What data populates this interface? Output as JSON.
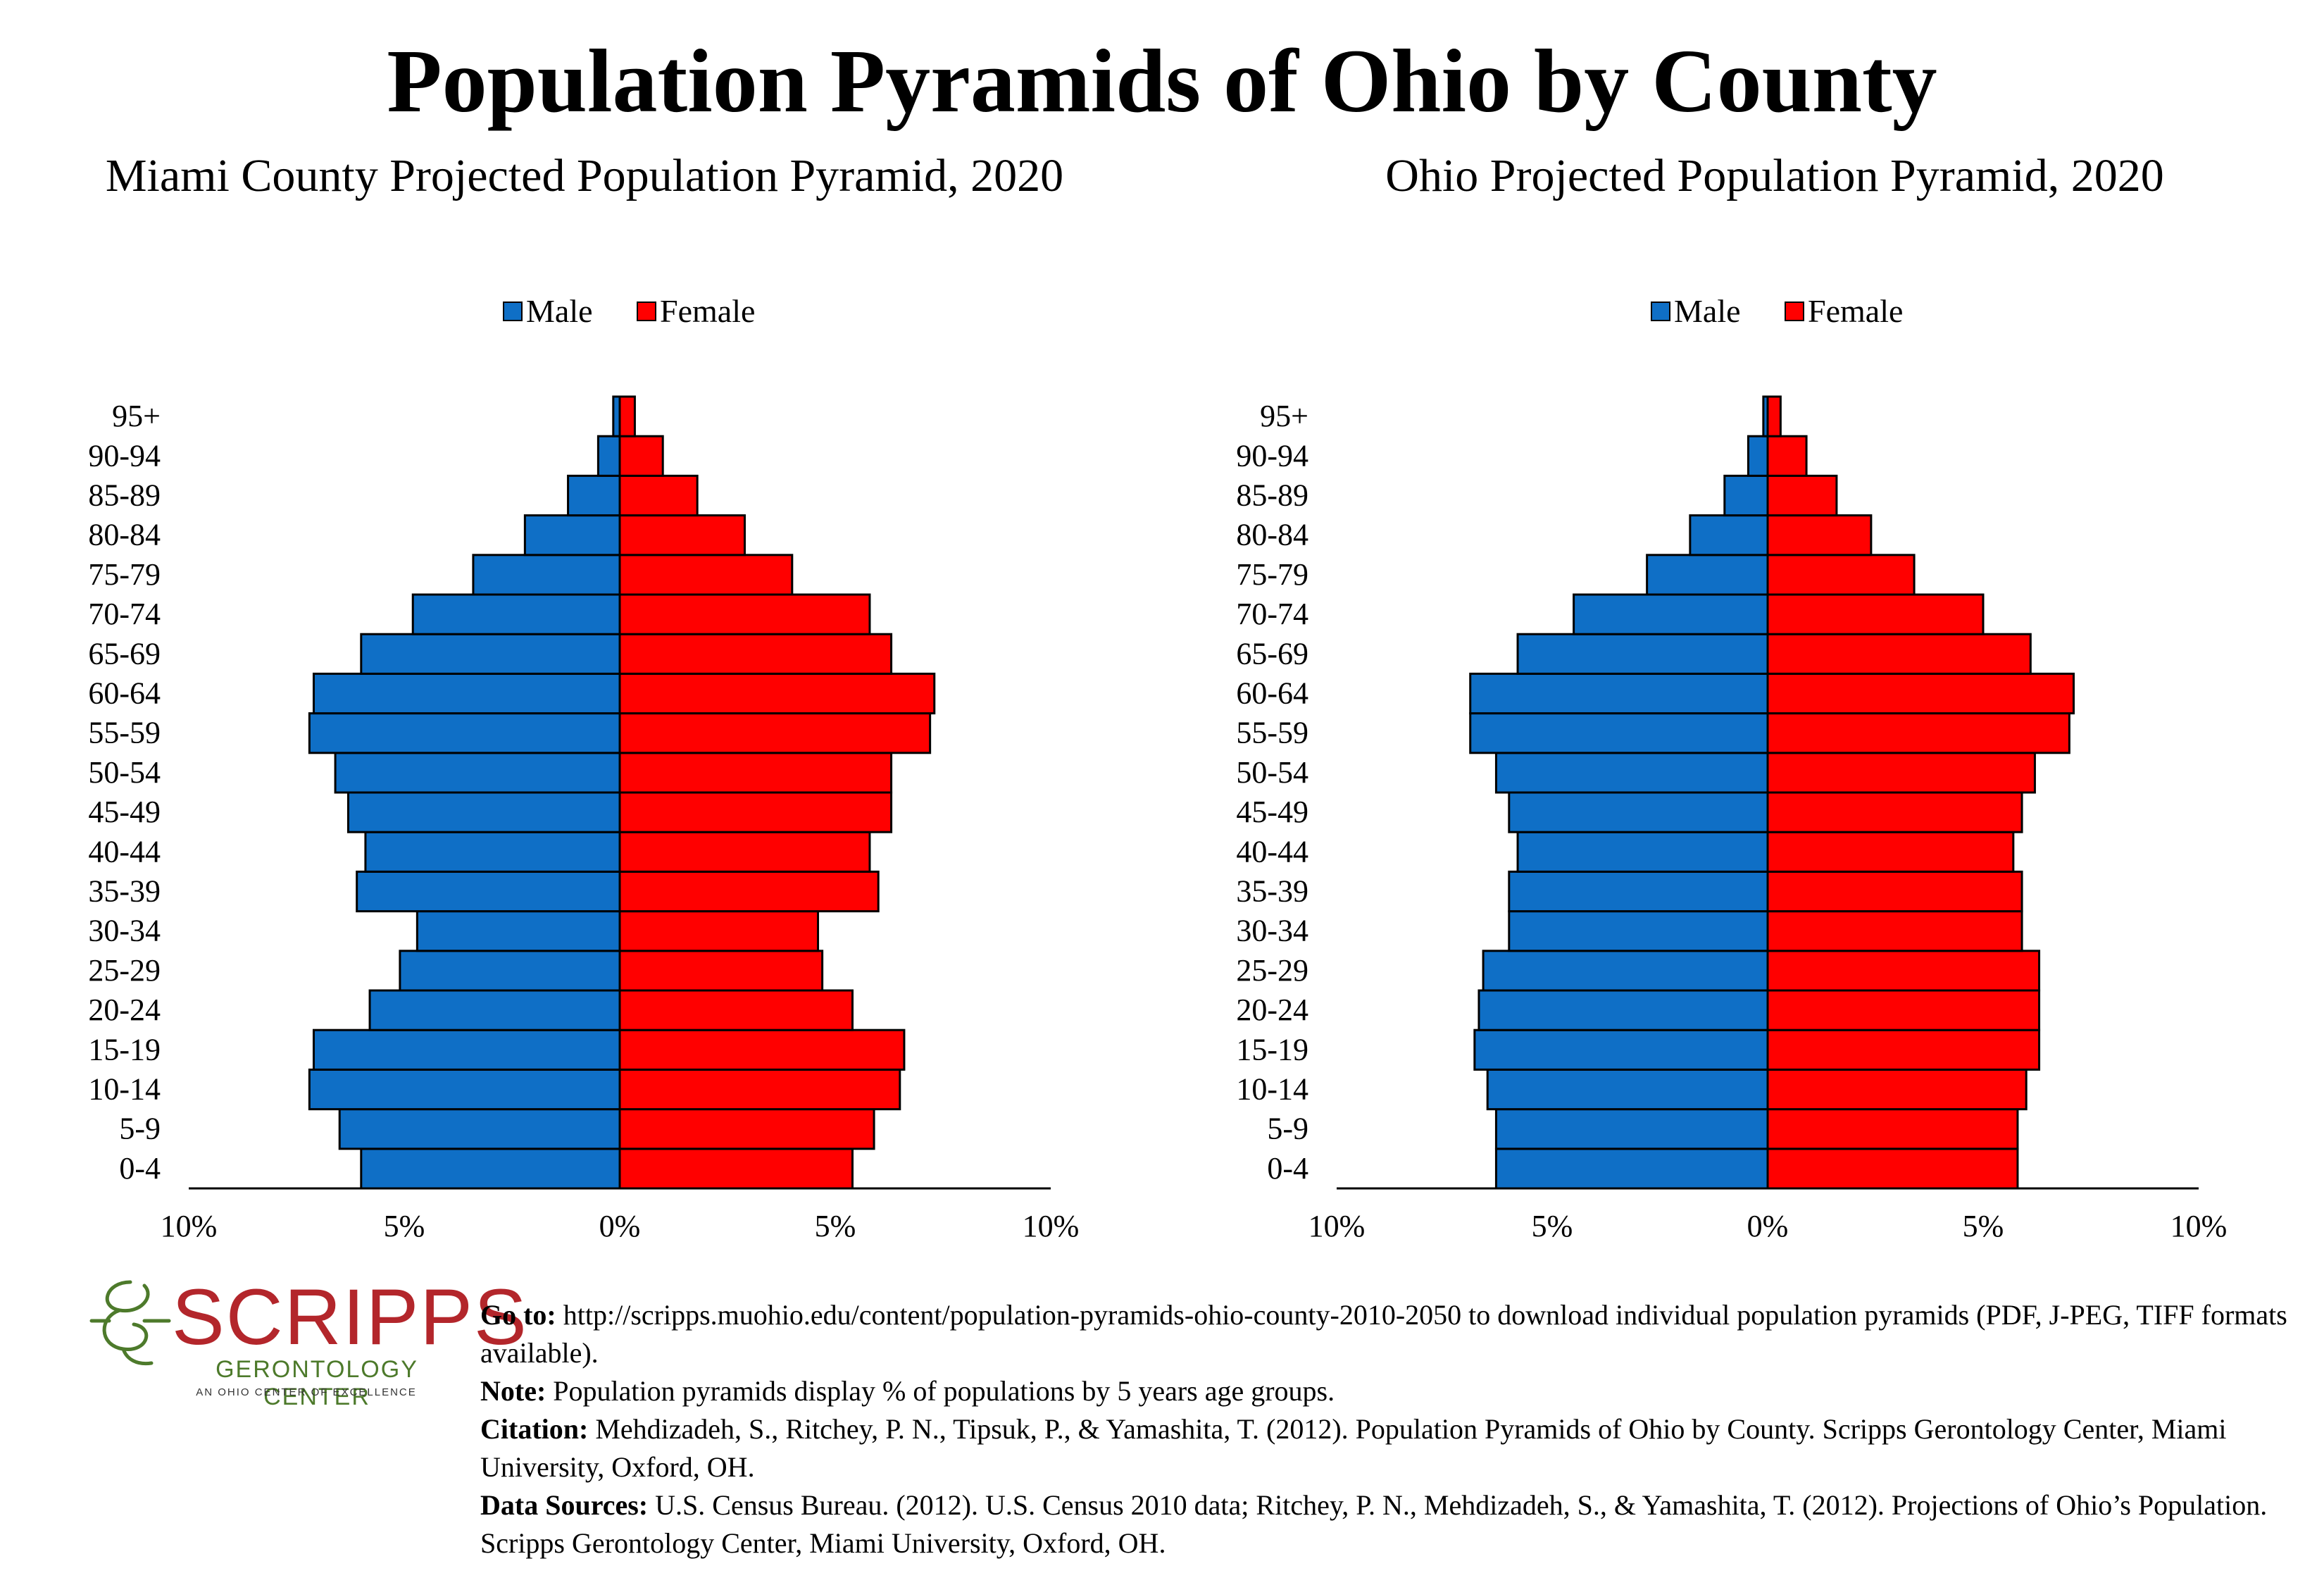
{
  "title": "Population Pyramids of Ohio by County",
  "legend": {
    "male": "Male",
    "female": "Female"
  },
  "colors": {
    "male": "#0f6fc6",
    "female": "#ff0000",
    "logo_red": "#b3262b",
    "logo_green": "#4d7a2b"
  },
  "chart_data": [
    {
      "type": "bar",
      "title": "Miami County Projected Population Pyramid, 2020",
      "orientation": "horizontal-pyramid",
      "categories": [
        "0-4",
        "5-9",
        "10-14",
        "15-19",
        "20-24",
        "25-29",
        "30-34",
        "35-39",
        "40-44",
        "45-49",
        "50-54",
        "55-59",
        "60-64",
        "65-69",
        "70-74",
        "75-79",
        "80-84",
        "85-89",
        "90-94",
        "95+"
      ],
      "series": [
        {
          "name": "Male",
          "values": [
            6.0,
            6.5,
            7.2,
            7.1,
            5.8,
            5.1,
            4.7,
            6.1,
            5.9,
            6.3,
            6.6,
            7.2,
            7.1,
            6.0,
            4.8,
            3.4,
            2.2,
            1.2,
            0.5,
            0.15
          ]
        },
        {
          "name": "Female",
          "values": [
            5.4,
            5.9,
            6.5,
            6.6,
            5.4,
            4.7,
            4.6,
            6.0,
            5.8,
            6.3,
            6.3,
            7.2,
            7.3,
            6.3,
            5.8,
            4.0,
            2.9,
            1.8,
            1.0,
            0.35
          ]
        }
      ],
      "xlim": [
        -10,
        10
      ],
      "x_ticks": [
        "10%",
        "5%",
        "0%",
        "5%",
        "10%"
      ],
      "legend_position": "top-center"
    },
    {
      "type": "bar",
      "title": "Ohio Projected Population Pyramid, 2020",
      "orientation": "horizontal-pyramid",
      "categories": [
        "0-4",
        "5-9",
        "10-14",
        "15-19",
        "20-24",
        "25-29",
        "30-34",
        "35-39",
        "40-44",
        "45-49",
        "50-54",
        "55-59",
        "60-64",
        "65-69",
        "70-74",
        "75-79",
        "80-84",
        "85-89",
        "90-94",
        "95+"
      ],
      "series": [
        {
          "name": "Male",
          "values": [
            6.3,
            6.3,
            6.5,
            6.8,
            6.7,
            6.6,
            6.0,
            6.0,
            5.8,
            6.0,
            6.3,
            6.9,
            6.9,
            5.8,
            4.5,
            2.8,
            1.8,
            1.0,
            0.45,
            0.1
          ]
        },
        {
          "name": "Female",
          "values": [
            5.8,
            5.8,
            6.0,
            6.3,
            6.3,
            6.3,
            5.9,
            5.9,
            5.7,
            5.9,
            6.2,
            7.0,
            7.1,
            6.1,
            5.0,
            3.4,
            2.4,
            1.6,
            0.9,
            0.3
          ]
        }
      ],
      "xlim": [
        -10,
        10
      ],
      "x_ticks": [
        "10%",
        "5%",
        "0%",
        "5%",
        "10%"
      ],
      "legend_position": "top-center"
    }
  ],
  "logo": {
    "name": "SCRIPPS",
    "subtitle": "GERONTOLOGY CENTER",
    "tagline": "AN OHIO CENTER OF EXCELLENCE"
  },
  "footnotes": {
    "goto_label": "Go to:",
    "goto_text": " http://scripps.muohio.edu/content/population-pyramids-ohio-county-2010-2050 to download individual population pyramids (PDF, J-PEG, TIFF formats available).",
    "note_label": "Note:",
    "note_text": " Population pyramids display % of populations by 5 years age groups.",
    "citation_label": "Citation:",
    "citation_text": " Mehdizadeh, S., Ritchey, P. N., Tipsuk, P., & Yamashita, T. (2012). Population Pyramids of Ohio by County. Scripps Gerontology Center, Miami University, Oxford, OH.",
    "sources_label": "Data Sources:",
    "sources_text": " U.S. Census Bureau. (2012). U.S. Census 2010 data; Ritchey, P. N., Mehdizadeh, S., & Yamashita, T. (2012). Projections of Ohio’s Population. Scripps Gerontology Center, Miami University, Oxford, OH."
  }
}
